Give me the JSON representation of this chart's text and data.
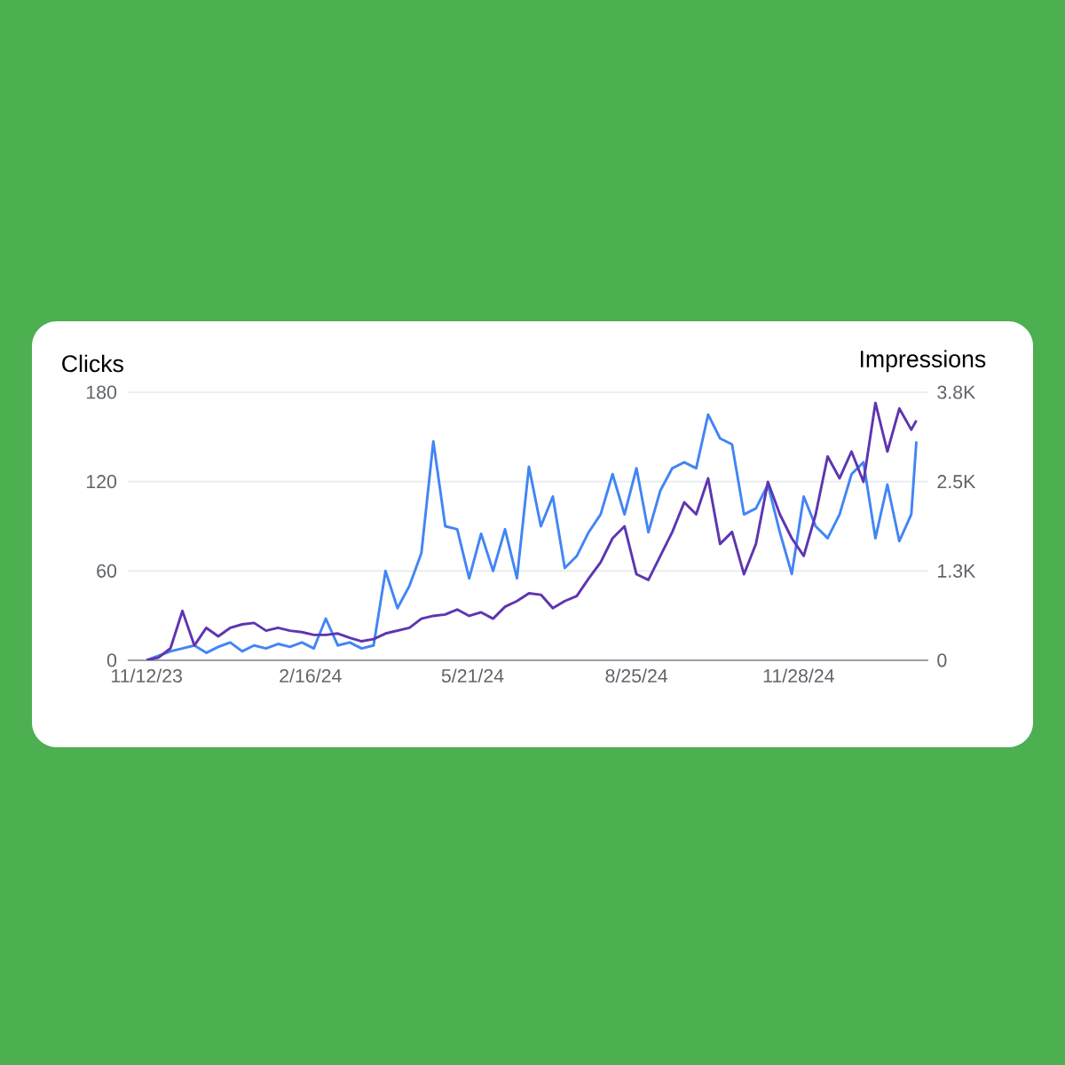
{
  "chart_data": {
    "type": "line",
    "ylabel": "Clicks",
    "y2label": "Impressions",
    "x": [
      "2023-11-12",
      "2023-11-19",
      "2023-11-26",
      "2023-12-03",
      "2023-12-10",
      "2023-12-17",
      "2023-12-24",
      "2023-12-31",
      "2024-01-07",
      "2024-01-14",
      "2024-01-21",
      "2024-01-28",
      "2024-02-04",
      "2024-02-11",
      "2024-02-18",
      "2024-02-25",
      "2024-03-03",
      "2024-03-10",
      "2024-03-17",
      "2024-03-24",
      "2024-03-31",
      "2024-04-07",
      "2024-04-14",
      "2024-04-21",
      "2024-04-28",
      "2024-05-05",
      "2024-05-12",
      "2024-05-19",
      "2024-05-26",
      "2024-06-02",
      "2024-06-09",
      "2024-06-16",
      "2024-06-23",
      "2024-06-30",
      "2024-07-07",
      "2024-07-14",
      "2024-07-21",
      "2024-07-28",
      "2024-08-04",
      "2024-08-11",
      "2024-08-18",
      "2024-08-25",
      "2024-09-01",
      "2024-09-08",
      "2024-09-15",
      "2024-09-22",
      "2024-09-29",
      "2024-10-06",
      "2024-10-13",
      "2024-10-20",
      "2024-10-27",
      "2024-11-03",
      "2024-11-10",
      "2024-11-17",
      "2024-11-24",
      "2024-12-01",
      "2024-12-08",
      "2024-12-15",
      "2024-12-22",
      "2024-12-29",
      "2025-01-05",
      "2025-01-12",
      "2025-01-19",
      "2025-01-26",
      "2025-02-02",
      "2025-02-05"
    ],
    "series": [
      {
        "color": "#4285f4",
        "values": [
          0,
          3,
          6,
          8,
          10,
          5,
          9,
          12,
          6,
          10,
          8,
          11,
          9,
          12,
          8,
          28,
          10,
          12,
          8,
          10,
          60,
          35,
          50,
          72,
          147,
          90,
          88,
          55,
          85,
          60,
          88,
          55,
          130,
          90,
          110,
          62,
          70,
          86,
          98,
          125,
          98,
          129,
          86,
          114,
          129,
          133,
          129,
          165,
          149,
          145,
          98,
          102,
          118,
          86,
          58,
          110,
          90,
          82,
          98,
          125,
          133,
          82,
          118,
          80,
          98,
          147
        ]
      },
      {
        "color": "#5e35b1",
        "axis": "y2",
        "values": [
          0,
          40,
          170,
          700,
          210,
          460,
          340,
          460,
          510,
          530,
          420,
          460,
          420,
          400,
          360,
          360,
          380,
          320,
          270,
          300,
          380,
          420,
          460,
          590,
          630,
          650,
          720,
          630,
          680,
          590,
          760,
          840,
          950,
          930,
          740,
          840,
          910,
          1160,
          1390,
          1730,
          1900,
          1220,
          1140,
          1480,
          1820,
          2240,
          2070,
          2580,
          1650,
          1820,
          1220,
          1650,
          2530,
          2070,
          1730,
          1480,
          2070,
          2890,
          2580,
          2960,
          2530,
          3650,
          2960,
          3570,
          3270,
          3400
        ]
      }
    ],
    "xlim": [
      "2023-11-01",
      "2025-02-12"
    ],
    "xticks": [
      {
        "value": "2023-11-12",
        "label": "11/12/23"
      },
      {
        "value": "2024-02-16",
        "label": "2/16/24"
      },
      {
        "value": "2024-05-21",
        "label": "5/21/24"
      },
      {
        "value": "2024-08-25",
        "label": "8/25/24"
      },
      {
        "value": "2024-11-28",
        "label": "11/28/24"
      }
    ],
    "ylim": [
      0,
      180
    ],
    "yticks": [
      0,
      60,
      120,
      180
    ],
    "y2lim": [
      0,
      3800
    ],
    "y2ticks": [
      0,
      {
        "value": 1266.7,
        "label": "1.3K"
      },
      {
        "value": 2533.3,
        "label": "2.5K"
      },
      {
        "value": 3800,
        "label": "3.8K"
      }
    ],
    "grid": "y"
  }
}
